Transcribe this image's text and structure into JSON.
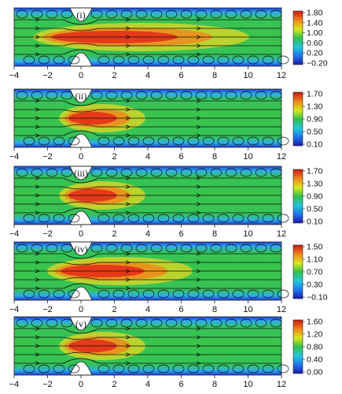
{
  "figure": {
    "x_ticks": [
      "−4",
      "−2",
      "0",
      "2",
      "4",
      "6",
      "8",
      "10",
      "12"
    ],
    "panels": [
      {
        "label": "(i)",
        "colorbar": [
          "1.80",
          "1.40",
          "1.00",
          "0.60",
          "0.20",
          "−0.20"
        ],
        "jet": "long"
      },
      {
        "label": "(ii)",
        "colorbar": [
          "1.70",
          "1.30",
          "0.90",
          "0.50",
          "0.10"
        ],
        "jet": "short"
      },
      {
        "label": "(iii)",
        "colorbar": [
          "1.70",
          "1.30",
          "0.90",
          "0.50",
          "0.10"
        ],
        "jet": "short"
      },
      {
        "label": "(iv)",
        "colorbar": [
          "1.50",
          "1.10",
          "0.70",
          "0.30",
          "−0.10"
        ],
        "jet": "medium"
      },
      {
        "label": "(v)",
        "colorbar": [
          "1.60",
          "1.20",
          "0.80",
          "0.40",
          "0.00"
        ],
        "jet": "short"
      }
    ],
    "colors": {
      "bg": "#31b84a",
      "wall": "#1d3dd6",
      "core": "#e8361c",
      "stream": "#111111"
    }
  }
}
